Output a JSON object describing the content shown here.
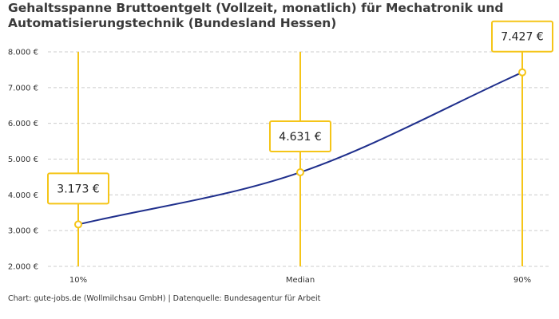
{
  "chart_data": {
    "type": "line",
    "title_lines": [
      "Gehaltsspanne Bruttoentgelt (Vollzeit, monatlich) für Mechatronik und",
      "Automatisierungstechnik (Bundesland Hessen)"
    ],
    "categories": [
      "10%",
      "Median",
      "90%"
    ],
    "values": [
      3173,
      4631,
      7427
    ],
    "value_labels": [
      "3.173 €",
      "4.631 €",
      "7.427 €"
    ],
    "y_ticks": [
      2000,
      3000,
      4000,
      5000,
      6000,
      7000,
      8000
    ],
    "y_tick_labels": [
      "2.000 €",
      "3.000 €",
      "4.000 €",
      "5.000 €",
      "6.000 €",
      "7.000 €",
      "8.000 €"
    ],
    "ylim": [
      2000,
      8000
    ],
    "grid": true,
    "legend": "none"
  },
  "caption": "Chart: gute-jobs.de (Wollmilchsau GmbH) | Datenquelle: Bundesagentur für Arbeit",
  "colors": {
    "line": "#1f2f8c",
    "accent": "#f5c518",
    "grid": "#cccccc",
    "text": "#333333"
  }
}
